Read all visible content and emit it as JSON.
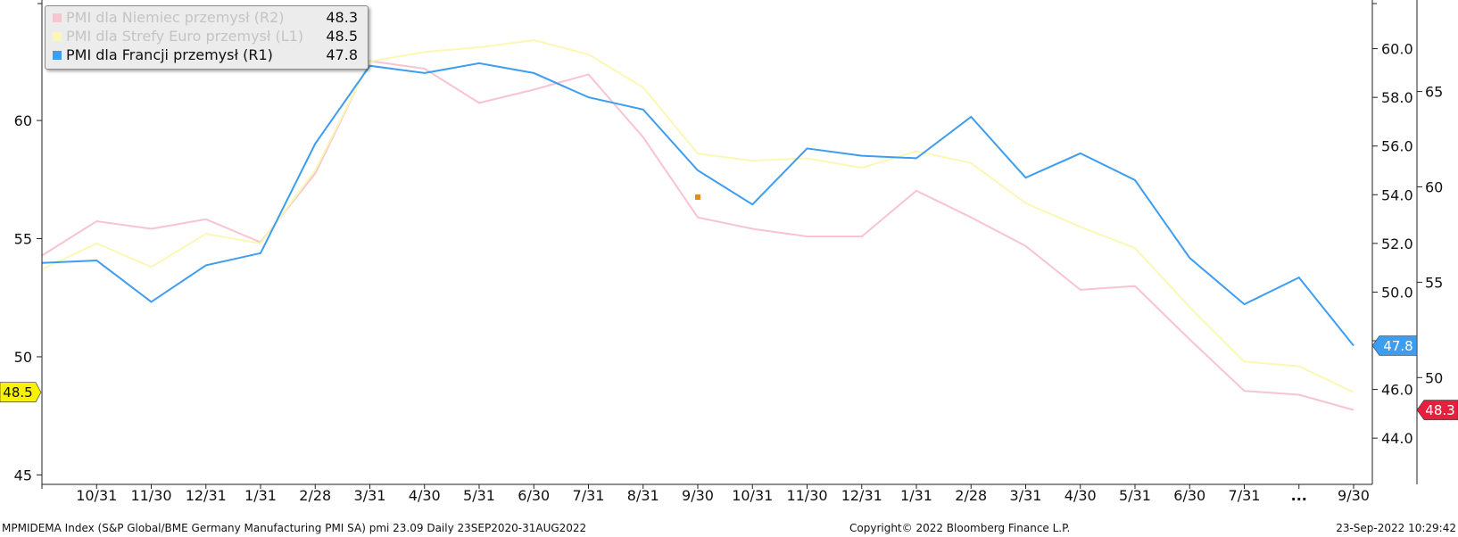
{
  "chart_data": {
    "type": "line",
    "x": [
      "9/30",
      "10/31",
      "11/30",
      "12/31",
      "1/31",
      "2/28",
      "3/31",
      "4/30",
      "5/31",
      "6/30",
      "7/31",
      "8/31",
      "9/30",
      "10/31",
      "11/30",
      "12/31",
      "1/31",
      "2/28",
      "3/31",
      "4/30",
      "5/31",
      "6/30",
      "7/31",
      "8/31",
      "9/30"
    ],
    "x_tick_labels": [
      "10/31",
      "11/30",
      "12/31",
      "1/31",
      "2/28",
      "3/31",
      "4/30",
      "5/31",
      "6/30",
      "7/31",
      "8/31",
      "9/30",
      "10/31",
      "11/30",
      "12/31",
      "1/31",
      "2/28",
      "3/31",
      "4/30",
      "5/31",
      "6/30",
      "7/31",
      "...",
      "9/30"
    ],
    "axes": {
      "L1": {
        "side": "left",
        "ylim": [
          44.6,
          65.1
        ],
        "ticks": [
          "45",
          "50",
          "55",
          "60"
        ]
      },
      "R1": {
        "side": "right-inner",
        "ylim": [
          42.1,
          62.0
        ],
        "ticks": [
          "44.0",
          "46.0",
          "48.0",
          "50.0",
          "52.0",
          "54.0",
          "56.0",
          "58.0",
          "60.0"
        ]
      },
      "R2": {
        "side": "right-outer",
        "ylim": [
          44.4,
          69.8
        ],
        "ticks": [
          "50",
          "55",
          "60",
          "65"
        ]
      }
    },
    "series": [
      {
        "name": "PMI dla Niemiec przemysł (R2)",
        "axis": "R2",
        "color": "#f7c4d0",
        "last": "48.3",
        "values": [
          56.4,
          58.2,
          57.8,
          58.3,
          57.1,
          60.7,
          66.6,
          66.2,
          64.4,
          65.1,
          65.9,
          62.6,
          58.4,
          57.8,
          57.4,
          57.4,
          59.8,
          58.4,
          56.9,
          54.6,
          54.8,
          52.0,
          49.3,
          49.1,
          48.3
        ]
      },
      {
        "name": "PMI dla Strefy Euro przemysł (L1)",
        "axis": "L1",
        "color": "#fbf7b5",
        "last": "48.5",
        "values": [
          53.7,
          54.8,
          53.8,
          55.2,
          54.8,
          57.9,
          62.5,
          62.9,
          63.1,
          63.4,
          62.8,
          61.4,
          58.6,
          58.3,
          58.4,
          58.0,
          58.7,
          58.2,
          56.5,
          55.5,
          54.6,
          52.1,
          49.8,
          49.6,
          48.5
        ]
      },
      {
        "name": "PMI dla Francji przemysł (R1)",
        "axis": "R1",
        "color": "#3d9df0",
        "last": "47.8",
        "values": [
          51.2,
          51.3,
          49.6,
          51.1,
          51.6,
          56.1,
          59.3,
          59.0,
          59.4,
          59.0,
          58.0,
          57.5,
          55.0,
          53.6,
          55.9,
          55.6,
          55.5,
          57.2,
          54.7,
          55.7,
          54.6,
          51.4,
          49.5,
          50.6,
          47.8
        ]
      }
    ],
    "axis_tags": [
      {
        "axis": "L1",
        "text": "48.5",
        "value": 48.5,
        "color": "#f7f200",
        "text_color": "#111111"
      },
      {
        "axis": "R1",
        "text": "47.8",
        "value": 47.8,
        "color": "#3d9df0",
        "text_color": "#ffffff"
      },
      {
        "axis": "R2",
        "text": "48.3",
        "value": 48.3,
        "color": "#e5203e",
        "text_color": "#ffffff"
      }
    ],
    "marker_color": "#e88b1a",
    "legend_placement": "top-left",
    "grid": false
  },
  "legend": {
    "items": [
      {
        "label": "PMI dla Niemiec przemysł (R2)",
        "value": "48.3",
        "color": "#f7c4d0",
        "text_color": "#c4c4c4"
      },
      {
        "label": "PMI dla Strefy Euro przemysł (L1)",
        "value": "48.5",
        "color": "#fbf7b5",
        "text_color": "#c4c4c4"
      },
      {
        "label": "PMI dla Francji przemysł (R1)",
        "value": "47.8",
        "color": "#3d9df0",
        "text_color": "#111111"
      }
    ]
  },
  "footer": {
    "source": "MPMIDEMA Index (S&P Global/BME Germany Manufacturing PMI SA) pmi 23.09  Daily 23SEP2020-31AUG2022",
    "copyright": "Copyright© 2022 Bloomberg Finance L.P.",
    "timestamp": "23-Sep-2022 10:29:42"
  }
}
